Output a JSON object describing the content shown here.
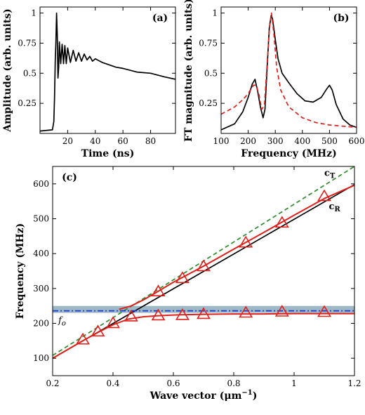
{
  "chart_data": [
    {
      "panel": "(a)",
      "type": "line",
      "xlabel": "Time (ns)",
      "ylabel": "Amplitude (arb. units)",
      "xlim": [
        0,
        98
      ],
      "ylim": [
        0,
        1.05
      ],
      "xticks": [
        20,
        40,
        60,
        80
      ],
      "yticks": [
        0.25,
        0.5,
        0.75,
        1
      ],
      "ytick_labels": [
        "0.25",
        "0.5",
        "0.75",
        "1"
      ],
      "series": [
        {
          "color": "#000000",
          "x": [
            0,
            9,
            10,
            10.5,
            11,
            11.5,
            12,
            12.5,
            13,
            13.5,
            14,
            15,
            16,
            17,
            18,
            19,
            20,
            22,
            24,
            26,
            28,
            30,
            32,
            34,
            36,
            38,
            40,
            45,
            50,
            55,
            60,
            70,
            80,
            90,
            98
          ],
          "y": [
            0.02,
            0.03,
            0.1,
            0.3,
            0.6,
            0.75,
            1.0,
            0.82,
            0.46,
            0.55,
            0.76,
            0.58,
            0.74,
            0.58,
            0.73,
            0.58,
            0.71,
            0.59,
            0.69,
            0.6,
            0.67,
            0.6,
            0.66,
            0.61,
            0.64,
            0.6,
            0.62,
            0.59,
            0.57,
            0.55,
            0.54,
            0.51,
            0.5,
            0.47,
            0.45
          ]
        }
      ]
    },
    {
      "panel": "(b)",
      "type": "line",
      "xlabel": "Frequency (MHz)",
      "ylabel": "FT magnitude (arb. units)",
      "xlim": [
        100,
        600
      ],
      "ylim": [
        0,
        1.05
      ],
      "xticks": [
        100,
        200,
        300,
        400,
        500,
        600
      ],
      "yticks": [
        0.25,
        0.5,
        0.75,
        1
      ],
      "ytick_labels": [
        "0.25",
        "0.5",
        "0.75",
        "1"
      ],
      "series": [
        {
          "style": "solid",
          "color": "#000000",
          "x": [
            100,
            150,
            180,
            200,
            215,
            225,
            235,
            245,
            255,
            262,
            270,
            278,
            285,
            290,
            300,
            310,
            325,
            350,
            380,
            410,
            440,
            470,
            490,
            500,
            510,
            525,
            550,
            575,
            600
          ],
          "y": [
            0.03,
            0.08,
            0.18,
            0.3,
            0.41,
            0.45,
            0.35,
            0.22,
            0.13,
            0.2,
            0.55,
            0.88,
            0.98,
            0.95,
            0.78,
            0.62,
            0.5,
            0.42,
            0.33,
            0.27,
            0.26,
            0.3,
            0.37,
            0.4,
            0.36,
            0.24,
            0.12,
            0.07,
            0.05
          ]
        },
        {
          "style": "dashed",
          "color": "#e0201a",
          "x": [
            100,
            150,
            180,
            200,
            210,
            220,
            230,
            240,
            250,
            260,
            270,
            280,
            286,
            295,
            305,
            320,
            350,
            400,
            450,
            500,
            550,
            600
          ],
          "y": [
            0.16,
            0.22,
            0.28,
            0.33,
            0.37,
            0.4,
            0.4,
            0.32,
            0.2,
            0.24,
            0.58,
            0.92,
            1.0,
            0.82,
            0.55,
            0.36,
            0.22,
            0.13,
            0.09,
            0.07,
            0.06,
            0.05
          ]
        }
      ]
    },
    {
      "panel": "(c)",
      "type": "scatter",
      "xlabel": "Wave vector (μm",
      "xlabel_sup": "−1",
      "xlabel_end": ")",
      "ylabel": "Frequency (MHz)",
      "xlim": [
        0.2,
        1.2
      ],
      "ylim": [
        50,
        650
      ],
      "xticks": [
        0.2,
        0.4,
        0.6,
        0.8,
        1,
        1.2
      ],
      "xtick_labels": [
        "0.2",
        "0.4",
        "0.6",
        "0.8",
        "1",
        "1.2"
      ],
      "yticks": [
        100,
        200,
        300,
        400,
        500,
        600
      ],
      "band": [
        230,
        250
      ],
      "band_color": "#9fb8c6",
      "fo_value": 236,
      "fo_label": "f",
      "fo_sub": "o",
      "labels": {
        "cT": "c",
        "cT_sub": "T",
        "cR": "c",
        "cR_sub": "R"
      },
      "series": [
        {
          "name_hint": "cT",
          "style": "dashed",
          "color": "#2e8b2e",
          "x": [
            0.2,
            1.2
          ],
          "y": [
            108,
            650
          ]
        },
        {
          "name_hint": "cR",
          "style": "solid",
          "color": "#000000",
          "x": [
            0.2,
            1.2
          ],
          "y": [
            100,
            598
          ]
        },
        {
          "name_hint": "fo",
          "style": "dashdot",
          "color": "#1a3bd6",
          "x": [
            0.2,
            1.2
          ],
          "y": [
            236,
            236
          ]
        },
        {
          "name_hint": "upper-branch",
          "style": "solid",
          "color": "#e0201a",
          "x": [
            0.42,
            0.46,
            0.5,
            0.55,
            0.6,
            0.65,
            0.7,
            0.8,
            0.9,
            1.0,
            1.1,
            1.2
          ],
          "y": [
            240,
            250,
            267,
            292,
            318,
            341,
            364,
            413,
            461,
            510,
            558,
            596
          ]
        },
        {
          "name_hint": "lower-branch",
          "style": "solid",
          "color": "#e0201a",
          "x": [
            0.2,
            0.25,
            0.3,
            0.35,
            0.4,
            0.45,
            0.5,
            0.55,
            0.6,
            0.7,
            0.8,
            0.9,
            1.0,
            1.1,
            1.2
          ],
          "y": [
            100,
            125,
            150,
            174,
            196,
            212,
            219,
            222,
            224,
            226,
            227,
            227,
            228,
            228,
            228
          ]
        },
        {
          "name_hint": "data-points",
          "style": "triangle",
          "color": "#e0201a",
          "x": [
            0.3,
            0.35,
            0.4,
            0.46,
            0.55,
            0.55,
            0.63,
            0.63,
            0.7,
            0.7,
            0.84,
            0.84,
            0.96,
            0.96,
            1.1,
            1.1
          ],
          "y": [
            152,
            175,
            199,
            218,
            221,
            290,
            222,
            328,
            225,
            362,
            229,
            430,
            232,
            487,
            231,
            563
          ]
        }
      ]
    }
  ]
}
